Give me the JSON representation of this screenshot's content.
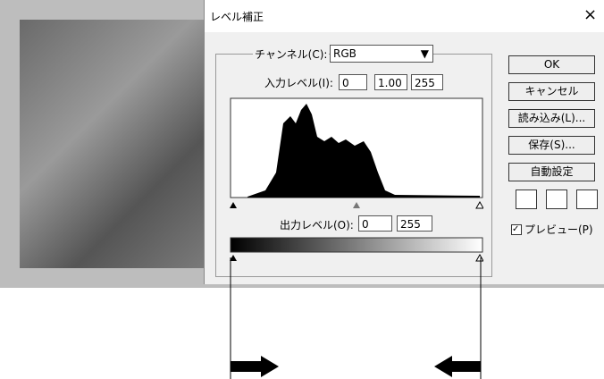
{
  "dialog": {
    "title": "レベル補正",
    "close": "×",
    "channel_label": "チャンネル(C):",
    "channel": "RGB",
    "input_label": "入力レベル(I):",
    "input_levels": [
      "0",
      "1.00",
      "255"
    ],
    "output_label": "出力レベル(O):",
    "output_levels": [
      "0",
      "255"
    ],
    "buttons": [
      "OK",
      "キャンセル",
      "読み込み(L)...",
      "保存(S)...",
      "自動設定"
    ],
    "preview_label": "プレビュー(P)"
  }
}
